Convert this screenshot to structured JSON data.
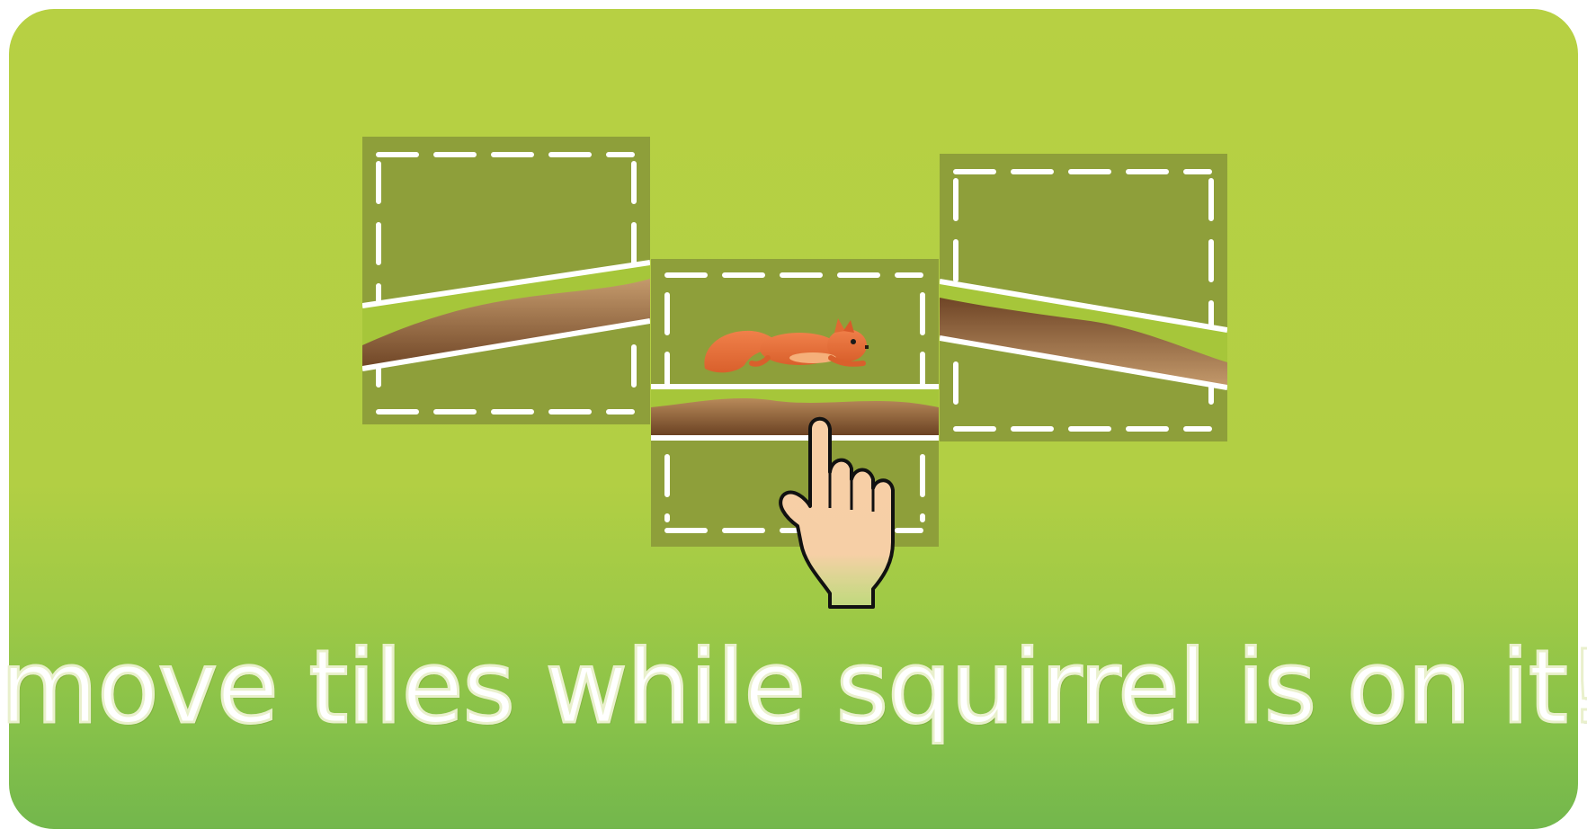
{
  "tutorial": {
    "instruction_text": "move tiles while squirrel is on it!"
  },
  "tiles": [
    {
      "name": "left-tile",
      "content": "slope-up-path"
    },
    {
      "name": "center-tile",
      "content": "flat-path-with-squirrel"
    },
    {
      "name": "right-tile",
      "content": "slope-down-path"
    }
  ],
  "icons": {
    "hand": "pointing-hand-icon",
    "character": "squirrel-icon"
  },
  "colors": {
    "background_top": "#b7d043",
    "background_bottom": "#73b74c",
    "tile": "#8e9f3a",
    "grass": "#a6c63a",
    "dirt_light": "#c49a6c",
    "dirt_dark": "#7a4e2b",
    "squirrel": "#e8703a",
    "hand_skin": "#f8cfa6"
  }
}
